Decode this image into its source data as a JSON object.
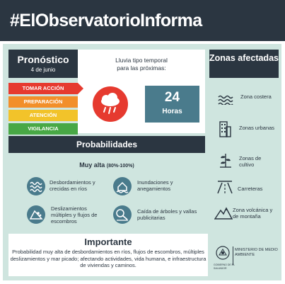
{
  "header": {
    "hashtag": "#ElObservatorio",
    "title_bold": "Informa"
  },
  "forecast": {
    "title": "Pronóstico",
    "date": "4 de junio",
    "rain_text": "Lluvia tipo temporal\npara las próximas:",
    "hours": "24",
    "hours_label": "Horas"
  },
  "alerts": [
    {
      "label": "TOMAR ACCIÓN",
      "color": "#e63a2f"
    },
    {
      "label": "PREPARACIÓN",
      "color": "#f28f2a"
    },
    {
      "label": "ATENCIÓN",
      "color": "#f2c32a"
    },
    {
      "label": "VIGILANCIA",
      "color": "#48a845"
    }
  ],
  "zones": {
    "title": "Zonas afectadas",
    "items": [
      {
        "label": "Zona costera",
        "icon": "waves-icon"
      },
      {
        "label": "Zonas urbanas",
        "icon": "building-icon"
      },
      {
        "label": "Zonas de cultivo",
        "icon": "crop-icon"
      },
      {
        "label": "Carreteras",
        "icon": "road-icon"
      },
      {
        "label": "Zona volcánica y de montaña",
        "icon": "mountain-icon"
      }
    ]
  },
  "probabilities": {
    "title": "Probabilidades",
    "level": "Muy alta",
    "range": "(80%-100%)",
    "risks": [
      {
        "label": "Desbordamientos y crecidas en ríos",
        "icon": "river-icon"
      },
      {
        "label": "Inundaciones y anegamientos",
        "icon": "flood-house-icon"
      },
      {
        "label": "Deslizamientos múltiples y flujos de escombros",
        "icon": "landslide-icon"
      },
      {
        "label": "Caída de árboles y vallas publicitarias",
        "icon": "fallen-tree-icon"
      }
    ]
  },
  "important": {
    "title": "Importante",
    "text": "Probabilidad muy alta de desbordamientos en ríos, flujos de escombros, múltiples deslizamientos y mar picado; afectando actividades, vida humana, e infraestructura de viviendas y caminos."
  },
  "ministry": {
    "name": "MINISTERIO DE MEDIO AMBIENTE",
    "sub": "GOBIERNO DE EL SALVADOR"
  },
  "colors": {
    "dark": "#2b3641",
    "teal": "#4a7b8c",
    "mint": "#cfe5df",
    "red": "#e63a2f",
    "orange": "#f28f2a",
    "yellow": "#f2c32a",
    "green": "#48a845"
  }
}
